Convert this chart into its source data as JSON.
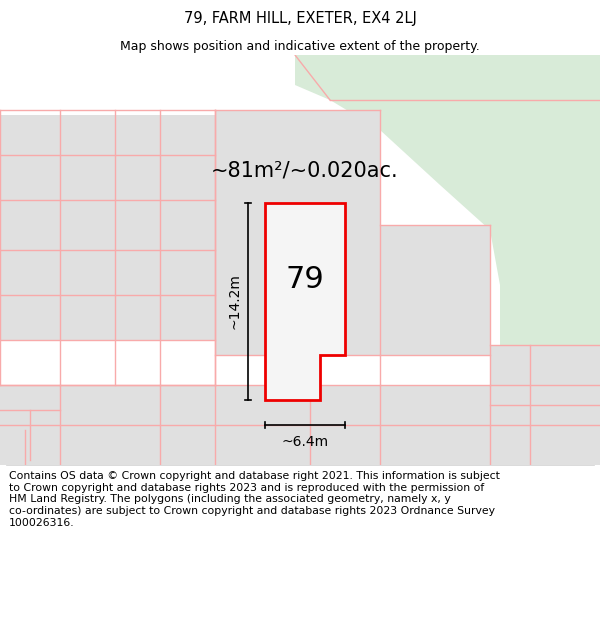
{
  "title": "79, FARM HILL, EXETER, EX4 2LJ",
  "subtitle": "Map shows position and indicative extent of the property.",
  "footer": "Contains OS data © Crown copyright and database right 2021. This information is subject\nto Crown copyright and database rights 2023 and is reproduced with the permission of\nHM Land Registry. The polygons (including the associated geometry, namely x, y\nco-ordinates) are subject to Crown copyright and database rights 2023 Ordnance Survey\n100026316.",
  "area_label": "~81m²/~0.020ac.",
  "width_label": "~6.4m",
  "height_label": "~14.2m",
  "number_label": "79",
  "bg_color": "#ffffff",
  "green_area_color": "#d8ebd8",
  "light_gray_plot": "#e0e0e0",
  "red_border_color": "#ee0000",
  "pink_border_color": "#f8aaaa",
  "title_fontsize": 10.5,
  "subtitle_fontsize": 9,
  "footer_fontsize": 7.8,
  "area_fontsize": 15,
  "number_fontsize": 22,
  "dim_fontsize": 10
}
